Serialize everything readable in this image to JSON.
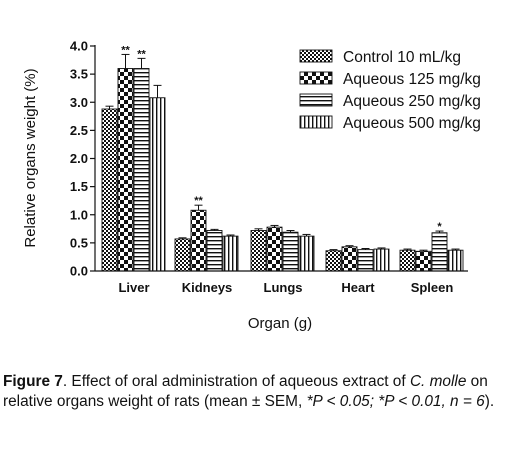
{
  "chart_data": {
    "type": "bar",
    "ylabel": "Relative organs weight (%)",
    "xlabel": "Organ (g)",
    "ylim": [
      0,
      4.0
    ],
    "yticks": [
      "0.0",
      "0.5",
      "1.0",
      "1.5",
      "2.0",
      "2.5",
      "3.0",
      "3.5",
      "4.0"
    ],
    "categories": [
      "Liver",
      "Kidneys",
      "Lungs",
      "Heart",
      "Spleen"
    ],
    "legend_position": "top-right",
    "series": [
      {
        "name": "Control 10 mL/kg",
        "pattern": "checker",
        "values": [
          2.88,
          0.57,
          0.72,
          0.36,
          0.37
        ],
        "errors": [
          0.05,
          0.02,
          0.03,
          0.02,
          0.02
        ]
      },
      {
        "name": "Aqueous 125 mg/kg",
        "pattern": "bigchecker",
        "values": [
          3.6,
          1.08,
          0.78,
          0.43,
          0.35
        ],
        "errors": [
          0.25,
          0.09,
          0.03,
          0.02,
          0.02
        ]
      },
      {
        "name": "Aqueous 250 mg/kg",
        "pattern": "hlines",
        "values": [
          3.6,
          0.72,
          0.69,
          0.38,
          0.68
        ],
        "errors": [
          0.18,
          0.02,
          0.03,
          0.02,
          0.03
        ]
      },
      {
        "name": "Aqueous 500 mg/kg",
        "pattern": "vlines",
        "values": [
          3.08,
          0.62,
          0.62,
          0.39,
          0.37
        ],
        "errors": [
          0.22,
          0.02,
          0.03,
          0.02,
          0.02
        ]
      }
    ],
    "significance": [
      {
        "category": "Liver",
        "series": 1,
        "mark": "**"
      },
      {
        "category": "Liver",
        "series": 2,
        "mark": "**"
      },
      {
        "category": "Kidneys",
        "series": 1,
        "mark": "**"
      },
      {
        "category": "Spleen",
        "series": 2,
        "mark": "*"
      }
    ]
  },
  "caption": {
    "figure_label": "Figure 7",
    "text_1": ". Effect of oral administration of aqueous extract of ",
    "species": "C. molle",
    "text_2": " on relative organs weight of rats (mean ± SEM, ",
    "stats": "*P < 0.05; *P < 0.01, n = 6",
    "text_3": ")."
  }
}
